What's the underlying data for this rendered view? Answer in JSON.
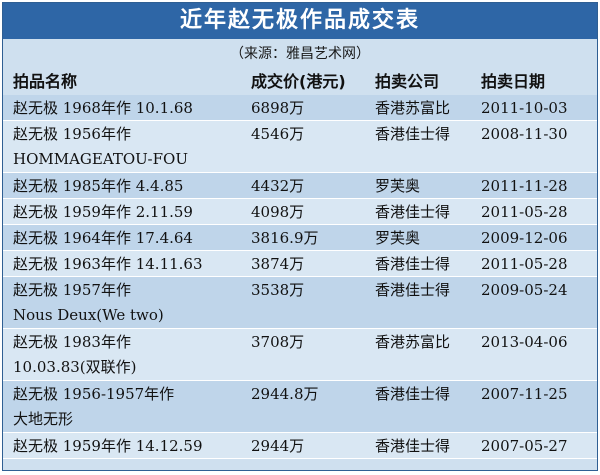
{
  "title": "近年赵无极作品成交表",
  "source": "（来源：雅昌艺术网）",
  "headers": {
    "name": "拍品名称",
    "price": "成交价(港元)",
    "house": "拍卖公司",
    "date": "拍卖日期"
  },
  "rows": [
    {
      "line1": "赵无极  1968年作  10.1.68",
      "line2": "",
      "price": "6898万",
      "house": "香港苏富比",
      "date": "2011-10-03"
    },
    {
      "line1": "赵无极  1956年作",
      "line2": "HOMMAGEATOU-FOU",
      "price": "4546万",
      "house": "香港佳士得",
      "date": "2008-11-30"
    },
    {
      "line1": "赵无极  1985年作    4.4.85",
      "line2": "",
      "price": "4432万",
      "house": "罗芙奥",
      "date": "2011-11-28"
    },
    {
      "line1": "赵无极  1959年作    2.11.59",
      "line2": "",
      "price": "4098万",
      "house": "香港佳士得",
      "date": "2011-05-28"
    },
    {
      "line1": "赵无极  1964年作  17.4.64",
      "line2": "",
      "price": "3816.9万",
      "house": "罗芙奥",
      "date": "2009-12-06"
    },
    {
      "line1": "赵无极  1963年作  14.11.63",
      "line2": "",
      "price": "3874万",
      "house": "香港佳士得",
      "date": "2011-05-28"
    },
    {
      "line1": "赵无极  1957年作",
      "line2": "Nous Deux(We two)",
      "price": "3538万",
      "house": "香港佳士得",
      "date": "2009-05-24"
    },
    {
      "line1": "赵无极  1983年作",
      "line2": "10.03.83(双联作)",
      "price": "3708万",
      "house": "香港苏富比",
      "date": "2013-04-06"
    },
    {
      "line1": "赵无极  1956-1957年作",
      "line2": "大地无形",
      "price": "2944.8万",
      "house": "香港佳士得",
      "date": "2007-11-25"
    },
    {
      "line1": "赵无极  1959年作  14.12.59",
      "line2": "",
      "price": "2944万",
      "house": "香港佳士得",
      "date": "2007-05-27"
    }
  ]
}
